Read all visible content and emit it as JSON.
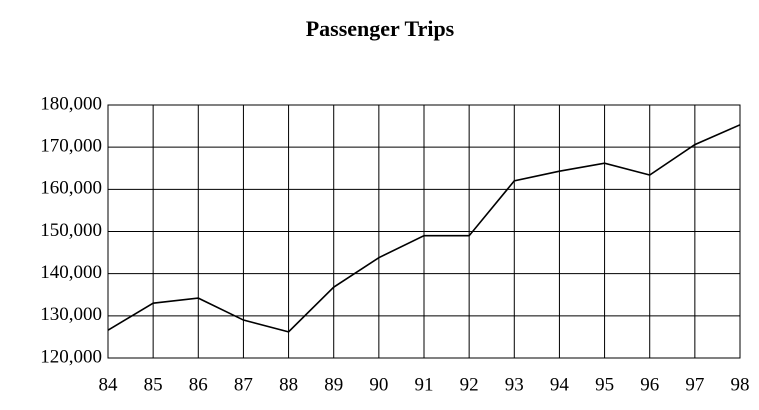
{
  "chart_data": {
    "type": "line",
    "title": "Passenger Trips",
    "categories": [
      "84",
      "85",
      "86",
      "87",
      "88",
      "89",
      "90",
      "91",
      "92",
      "93",
      "94",
      "95",
      "96",
      "97",
      "98"
    ],
    "values": [
      126600,
      133000,
      134200,
      129000,
      126200,
      136800,
      143800,
      149000,
      149000,
      162000,
      164300,
      166200,
      163400,
      170600,
      175300
    ],
    "color": "#000000",
    "ylim": [
      120000,
      180000
    ],
    "yticks": [
      {
        "value": 120000,
        "label": "120,000"
      },
      {
        "value": 130000,
        "label": "130,000"
      },
      {
        "value": 140000,
        "label": "140,000"
      },
      {
        "value": 150000,
        "label": "150,000"
      },
      {
        "value": 160000,
        "label": "160,000"
      },
      {
        "value": 170000,
        "label": "170,000"
      },
      {
        "value": 180000,
        "label": "180,000"
      }
    ],
    "grid": true
  }
}
